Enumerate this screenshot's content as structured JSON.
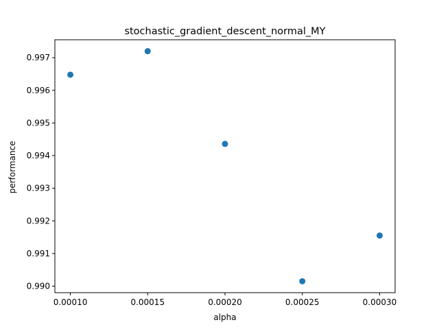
{
  "chart_data": {
    "type": "scatter",
    "title": "stochastic_gradient_descent_normal_MY",
    "xlabel": "alpha",
    "ylabel": "performance",
    "x": [
      0.0001,
      0.00015,
      0.0002,
      0.00025,
      0.0003
    ],
    "y": [
      0.99648,
      0.9972,
      0.99436,
      0.99015,
      0.99155
    ],
    "xlim": [
      9e-05,
      0.00031
    ],
    "ylim": [
      0.9898,
      0.99755
    ],
    "xticks": [
      0.0001,
      0.00015,
      0.0002,
      0.00025,
      0.0003
    ],
    "xtick_labels": [
      "0.00010",
      "0.00015",
      "0.00020",
      "0.00025",
      "0.00030"
    ],
    "yticks": [
      0.99,
      0.991,
      0.992,
      0.993,
      0.994,
      0.995,
      0.996,
      0.997
    ],
    "ytick_labels": [
      "0.990",
      "0.991",
      "0.992",
      "0.993",
      "0.994",
      "0.995",
      "0.996",
      "0.997"
    ],
    "grid": false,
    "colors": {
      "marker": "#1f77b4",
      "axes": "#000000"
    }
  }
}
